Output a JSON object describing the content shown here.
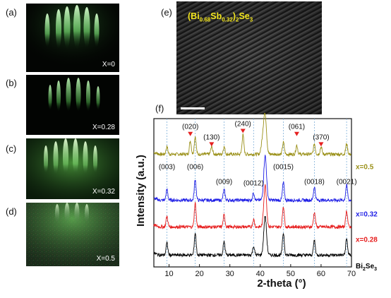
{
  "panels": {
    "a": {
      "label": "(a)",
      "x_label": "X=0"
    },
    "b": {
      "label": "(b)",
      "x_label": "X=0.28"
    },
    "c": {
      "label": "(c)",
      "x_label": "X=0.32"
    },
    "d": {
      "label": "(d)",
      "x_label": "X=0.5"
    },
    "e": {
      "label": "(e)",
      "title_main": "(Bi",
      "title_sub1": "0.68",
      "title_mid": "Sb",
      "title_sub2": "0.32",
      "title_close": ")",
      "title_sub3": "2",
      "title_end": "Se",
      "title_sub4": "3"
    },
    "f": {
      "label": "(f)"
    }
  },
  "colors": {
    "x05": "#9a9018",
    "x032": "#1f1fe6",
    "x028": "#e61c1c",
    "bi2se3": "#000000",
    "marker": "#e62020",
    "tem_title": "#f2e51d",
    "rheed_green": "#7de07a"
  },
  "chart_data": {
    "type": "line",
    "xlabel": "2-theta (°)",
    "ylabel": "Intensity (a.u.)",
    "xlim": [
      5,
      70
    ],
    "xticks": [
      10,
      20,
      30,
      40,
      50,
      60,
      70
    ],
    "dashed_guides_x": [
      9.3,
      18.6,
      28.1,
      37.8,
      47.6,
      57.8,
      68.4
    ],
    "series": [
      {
        "name": "x=0.5",
        "color": "#9a9018",
        "base": 0.76,
        "peaks": [
          [
            9.3,
            0.05
          ],
          [
            17.0,
            0.09
          ],
          [
            18.6,
            0.12
          ],
          [
            24.0,
            0.05
          ],
          [
            28.1,
            0.05
          ],
          [
            34.3,
            0.13
          ],
          [
            40.8,
            0.1
          ],
          [
            41.6,
            0.26
          ],
          [
            47.6,
            0.08
          ],
          [
            52.0,
            0.06
          ],
          [
            57.8,
            0.07
          ],
          [
            60.0,
            0.05
          ],
          [
            68.4,
            0.07
          ]
        ]
      },
      {
        "name": "x=0.32",
        "color": "#1f1fe6",
        "base": 0.45,
        "peaks": [
          [
            9.3,
            0.07
          ],
          [
            18.6,
            0.14
          ],
          [
            28.1,
            0.07
          ],
          [
            37.8,
            0.05
          ],
          [
            41.6,
            0.3
          ],
          [
            47.6,
            0.12
          ],
          [
            57.8,
            0.09
          ],
          [
            68.4,
            0.1
          ]
        ]
      },
      {
        "name": "x=0.28",
        "color": "#e61c1c",
        "base": 0.27,
        "peaks": [
          [
            9.3,
            0.07
          ],
          [
            18.6,
            0.16
          ],
          [
            28.1,
            0.08
          ],
          [
            37.8,
            0.05
          ],
          [
            41.6,
            0.28
          ],
          [
            47.6,
            0.14
          ],
          [
            57.8,
            0.1
          ],
          [
            68.4,
            0.11
          ]
        ]
      },
      {
        "name": "Bi",
        "name_sub1": "2",
        "name_mid": "Se",
        "name_sub2": "3",
        "color": "#000000",
        "base": 0.08,
        "peaks": [
          [
            9.3,
            0.08
          ],
          [
            18.6,
            0.15
          ],
          [
            28.1,
            0.09
          ],
          [
            37.8,
            0.06
          ],
          [
            41.6,
            0.26
          ],
          [
            47.6,
            0.15
          ],
          [
            57.8,
            0.1
          ],
          [
            68.4,
            0.11
          ]
        ]
      }
    ],
    "annotations": {
      "top": [
        {
          "text": "(020)",
          "x": 17.0
        },
        {
          "text": "(130)",
          "x": 24.0
        },
        {
          "text": "(240)",
          "x": 34.3
        },
        {
          "text": "(061)",
          "x": 52.0
        },
        {
          "text": "(370)",
          "x": 60.0
        }
      ],
      "mid": [
        {
          "text": "(003)",
          "x": 9.3
        },
        {
          "text": "(006)",
          "x": 18.6
        },
        {
          "text": "(009)",
          "x": 28.1
        },
        {
          "text": "(0012)",
          "x": 37.8
        },
        {
          "text": "(0015)",
          "x": 47.6
        },
        {
          "text": "(0018)",
          "x": 57.8
        },
        {
          "text": "(0021)",
          "x": 68.4
        }
      ]
    }
  }
}
